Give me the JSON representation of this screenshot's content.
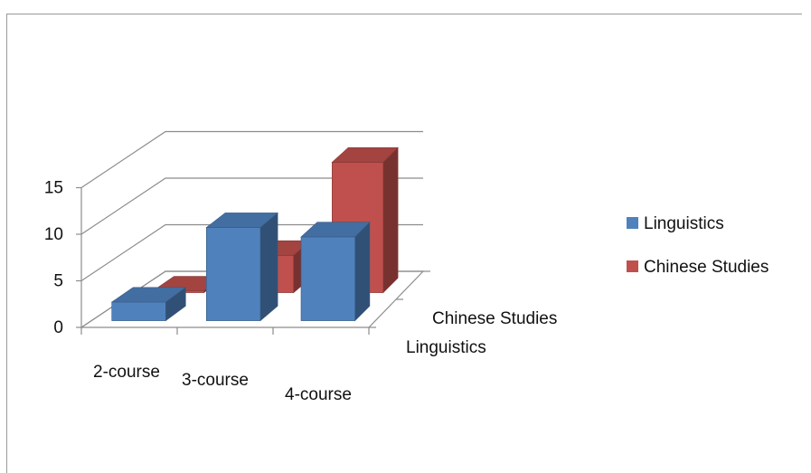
{
  "chart_data": {
    "type": "bar",
    "categories": [
      "2-course",
      "3-course",
      "4-course"
    ],
    "series": [
      {
        "name": "Linguistics",
        "values": [
          2,
          10,
          9
        ],
        "color": "#4f81bd"
      },
      {
        "name": "Chinese Studies",
        "values": [
          0,
          4,
          14
        ],
        "color": "#c0504d"
      }
    ],
    "yticks": [
      0,
      5,
      10,
      15
    ],
    "ylim": [
      0,
      15
    ],
    "title": "",
    "xlabel": "",
    "ylabel": "",
    "grid": true,
    "legend_position": "right"
  }
}
